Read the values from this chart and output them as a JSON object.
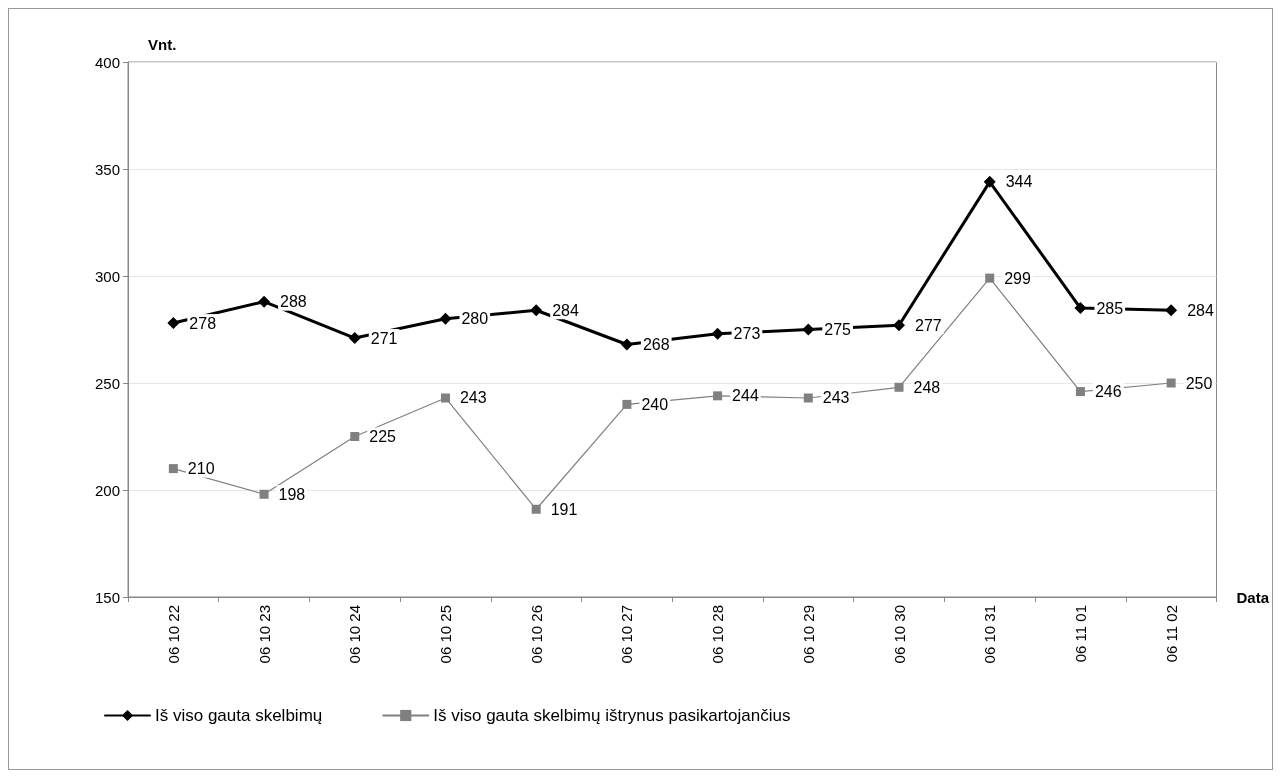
{
  "chart_data": {
    "type": "line",
    "xlabel": "Data",
    "ylabel": "Vnt.",
    "categories": [
      "06 10 22",
      "06 10 23",
      "06 10 24",
      "06 10 25",
      "06 10 26",
      "06 10 27",
      "06 10 28",
      "06 10 29",
      "06 10 30",
      "06 10 31",
      "06 11 01",
      "06 11 02"
    ],
    "series": [
      {
        "name": "Iš viso gauta skelbimų",
        "color": "#000000",
        "marker": "diamond",
        "values": [
          278,
          288,
          271,
          280,
          284,
          268,
          273,
          275,
          277,
          344,
          285,
          284
        ]
      },
      {
        "name": "Iš viso gauta skelbimų ištrynus pasikartojančius",
        "color": "#808080",
        "marker": "square",
        "values": [
          210,
          198,
          225,
          243,
          191,
          240,
          244,
          243,
          248,
          299,
          246,
          250
        ]
      }
    ],
    "ylim": [
      150,
      400
    ],
    "yticks": [
      150,
      200,
      250,
      300,
      350,
      400
    ],
    "grid": "y",
    "legend": "bottom",
    "data_labels": true,
    "line_style": "solid"
  }
}
